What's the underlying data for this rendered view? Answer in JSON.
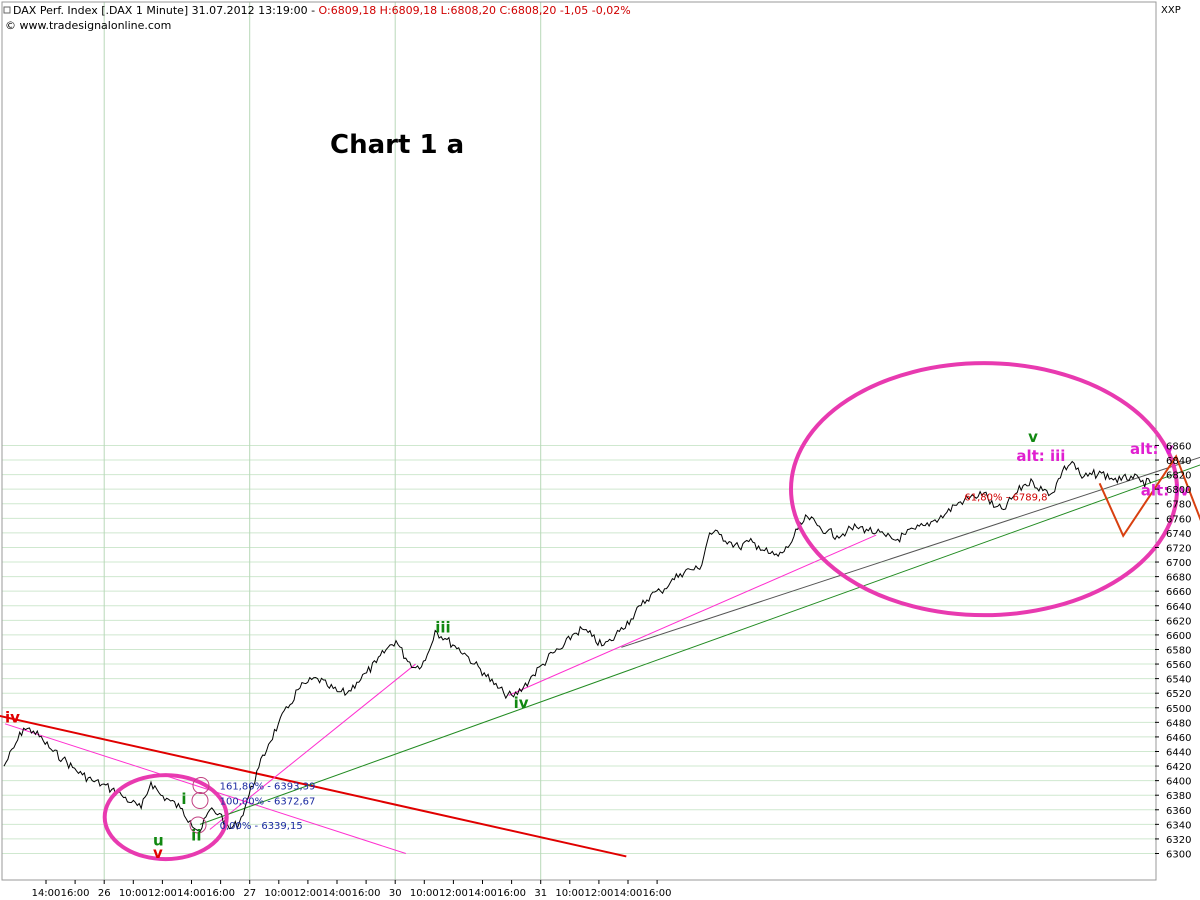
{
  "header": {
    "instrument": "DAX Perf. Index [.DAX  1 Minute] 31.07.2012 13:19:00 - ",
    "ohlc": "O:6809,18 H:6809,18 L:6808,20 C:6808,20 -1,05 -0,02%",
    "source": "© www.tradesignalonline.com",
    "corner": "XXP"
  },
  "chart_data": {
    "type": "line",
    "title": "Chart 1 a",
    "ylim": [
      6290,
      6880
    ],
    "y_ticks": [
      6300,
      6320,
      6340,
      6360,
      6380,
      6400,
      6420,
      6440,
      6460,
      6480,
      6500,
      6520,
      6540,
      6560,
      6580,
      6600,
      6620,
      6640,
      6660,
      6680,
      6700,
      6720,
      6740,
      6760,
      6780,
      6800,
      6820,
      6840,
      6860
    ],
    "x_tick_labels": [
      "14:00",
      "16:00",
      "26",
      "10:00",
      "12:00",
      "14:00",
      "16:00",
      "27",
      "10:00",
      "12:00",
      "14:00",
      "16:00",
      "30",
      "10:00",
      "12:00",
      "14:00",
      "16:00",
      "31",
      "10:00",
      "12:00",
      "14:00",
      "16:00"
    ],
    "grid": true,
    "series": [
      {
        "values": [
          6420,
          6445,
          6472,
          6468,
          6455,
          6440,
          6430,
          6418,
          6408,
          6400,
          6395,
          6388,
          6380,
          6370,
          6362,
          6398,
          6380,
          6372,
          6362,
          6345,
          6330,
          6360,
          6355,
          6334,
          6342,
          6380,
          6418,
          6450,
          6478,
          6500,
          6525,
          6535,
          6540,
          6530,
          6522,
          6520,
          6535,
          6548,
          6562,
          6580,
          6592,
          6568,
          6555,
          6565,
          6606,
          6595,
          6585,
          6575,
          6560,
          6548,
          6532,
          6520,
          6515,
          6528,
          6545,
          6560,
          6575,
          6582,
          6600,
          6608,
          6598,
          6585,
          6592,
          6610,
          6622,
          6640,
          6655,
          6660,
          6672,
          6684,
          6690,
          6690,
          6740,
          6738,
          6728,
          6720,
          6728,
          6722,
          6712,
          6708,
          6720,
          6745,
          6762,
          6750,
          6742,
          6736,
          6742,
          6748,
          6745,
          6740,
          6735,
          6730,
          6738,
          6745,
          6750,
          6758,
          6765,
          6778,
          6785,
          6790,
          6795,
          6775,
          6772,
          6790,
          6805,
          6810,
          6798,
          6795,
          6825,
          6838,
          6815,
          6820,
          6822,
          6815,
          6812,
          6818,
          6810,
          6808
        ]
      }
    ],
    "wave_labels": [
      {
        "text": "iv",
        "x": 0.1,
        "y": 6480,
        "color": "#e00000"
      },
      {
        "text": "i",
        "x": 18.1,
        "y": 6368,
        "color": "#118811"
      },
      {
        "text": "ii",
        "x": 19.1,
        "y": 6318,
        "color": "#118811"
      },
      {
        "text": "u",
        "x": 15.2,
        "y": 6311,
        "color": "#118811"
      },
      {
        "text": "v",
        "x": 15.2,
        "y": 6294,
        "color": "#e00000"
      },
      {
        "text": "iii",
        "x": 44.0,
        "y": 6603,
        "color": "#118811"
      },
      {
        "text": "iv",
        "x": 52.0,
        "y": 6500,
        "color": "#118811"
      },
      {
        "text": "v",
        "x": 104.5,
        "y": 6865,
        "color": "#118811"
      },
      {
        "text": "alt: iii",
        "x": 103.3,
        "y": 6839,
        "color": "#e020d0"
      },
      {
        "text": "alt: v",
        "x": 114.9,
        "y": 6848,
        "color": "#e020d0"
      },
      {
        "text": "alt: iv",
        "x": 116.0,
        "y": 6791,
        "color": "#e020d0"
      }
    ],
    "fib_labels": [
      {
        "text": "161,80% - 6393,39",
        "y": 6393.39
      },
      {
        "text": "100,00% - 6372,67",
        "y": 6372.67
      },
      {
        "text": "0,00% - 6339,15",
        "y": 6339.15
      },
      {
        "text": "61,80% - 6789,8",
        "y": 6789.8
      }
    ],
    "trendlines": [
      {
        "color": "#e00000",
        "from": [
          -3.5,
          6498
        ],
        "to": [
          63.5,
          6296
        ]
      },
      {
        "color": "#ff30d0",
        "from": [
          0.1,
          6478
        ],
        "to": [
          41,
          6300
        ]
      },
      {
        "color": "#ff30d0",
        "from": [
          21,
          6333
        ],
        "to": [
          42,
          6560
        ]
      },
      {
        "color": "#ff30d0",
        "from": [
          51.5,
          6517
        ],
        "to": [
          89,
          6737
        ]
      },
      {
        "color": "#555555",
        "from": [
          63,
          6583
        ],
        "to": [
          128,
          6870
        ]
      },
      {
        "color": "#228b22",
        "from": [
          20,
          6340
        ],
        "to": [
          128,
          6862
        ]
      }
    ],
    "projection": [
      [
        111.8,
        6808
      ],
      [
        114.2,
        6736
      ],
      [
        119.6,
        6845
      ],
      [
        122.1,
        6758
      ],
      [
        126.4,
        6872
      ]
    ],
    "projection_color": "#d84010",
    "ellipse_color": "#e83ab0",
    "time_separators": [
      "26",
      "27",
      "30",
      "31"
    ]
  }
}
